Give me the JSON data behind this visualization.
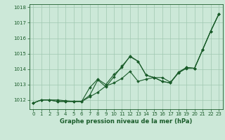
{
  "xlabel": "Graphe pression niveau de la mer (hPa)",
  "background_color": "#cce8d8",
  "line_color": "#1a5c2a",
  "grid_color": "#a0c8b0",
  "ylim": [
    1011.4,
    1018.2
  ],
  "xlim": [
    -0.5,
    23.5
  ],
  "yticks": [
    1012,
    1013,
    1014,
    1015,
    1016,
    1017,
    1018
  ],
  "xticks": [
    0,
    1,
    2,
    3,
    4,
    5,
    6,
    7,
    8,
    9,
    10,
    11,
    12,
    13,
    14,
    15,
    16,
    17,
    18,
    19,
    20,
    21,
    22,
    23
  ],
  "series": [
    [
      1011.8,
      1012.0,
      1012.0,
      1012.0,
      1011.95,
      1011.9,
      1011.9,
      1012.2,
      1012.5,
      1012.9,
      1013.1,
      1013.4,
      1013.85,
      1013.2,
      1013.35,
      1013.45,
      1013.45,
      1013.15,
      1013.75,
      1014.05,
      1014.05,
      1015.25,
      1016.45,
      1017.55
    ],
    [
      1011.8,
      1012.0,
      1012.0,
      1011.9,
      1011.9,
      1011.9,
      1011.9,
      1012.3,
      1013.3,
      1012.85,
      1013.5,
      1014.2,
      1014.8,
      1014.5,
      1013.6,
      1013.45,
      1013.2,
      1013.1,
      1013.75,
      1014.1,
      1014.05,
      1015.25,
      1016.45,
      1017.55
    ],
    [
      1011.8,
      1012.0,
      1012.0,
      1011.9,
      1011.9,
      1011.9,
      1011.9,
      1012.8,
      1013.35,
      1013.0,
      1013.65,
      1014.1,
      1014.85,
      1014.5,
      1013.6,
      1013.45,
      1013.2,
      1013.1,
      1013.8,
      1014.1,
      1014.05,
      1015.25,
      1016.45,
      1017.55
    ]
  ]
}
